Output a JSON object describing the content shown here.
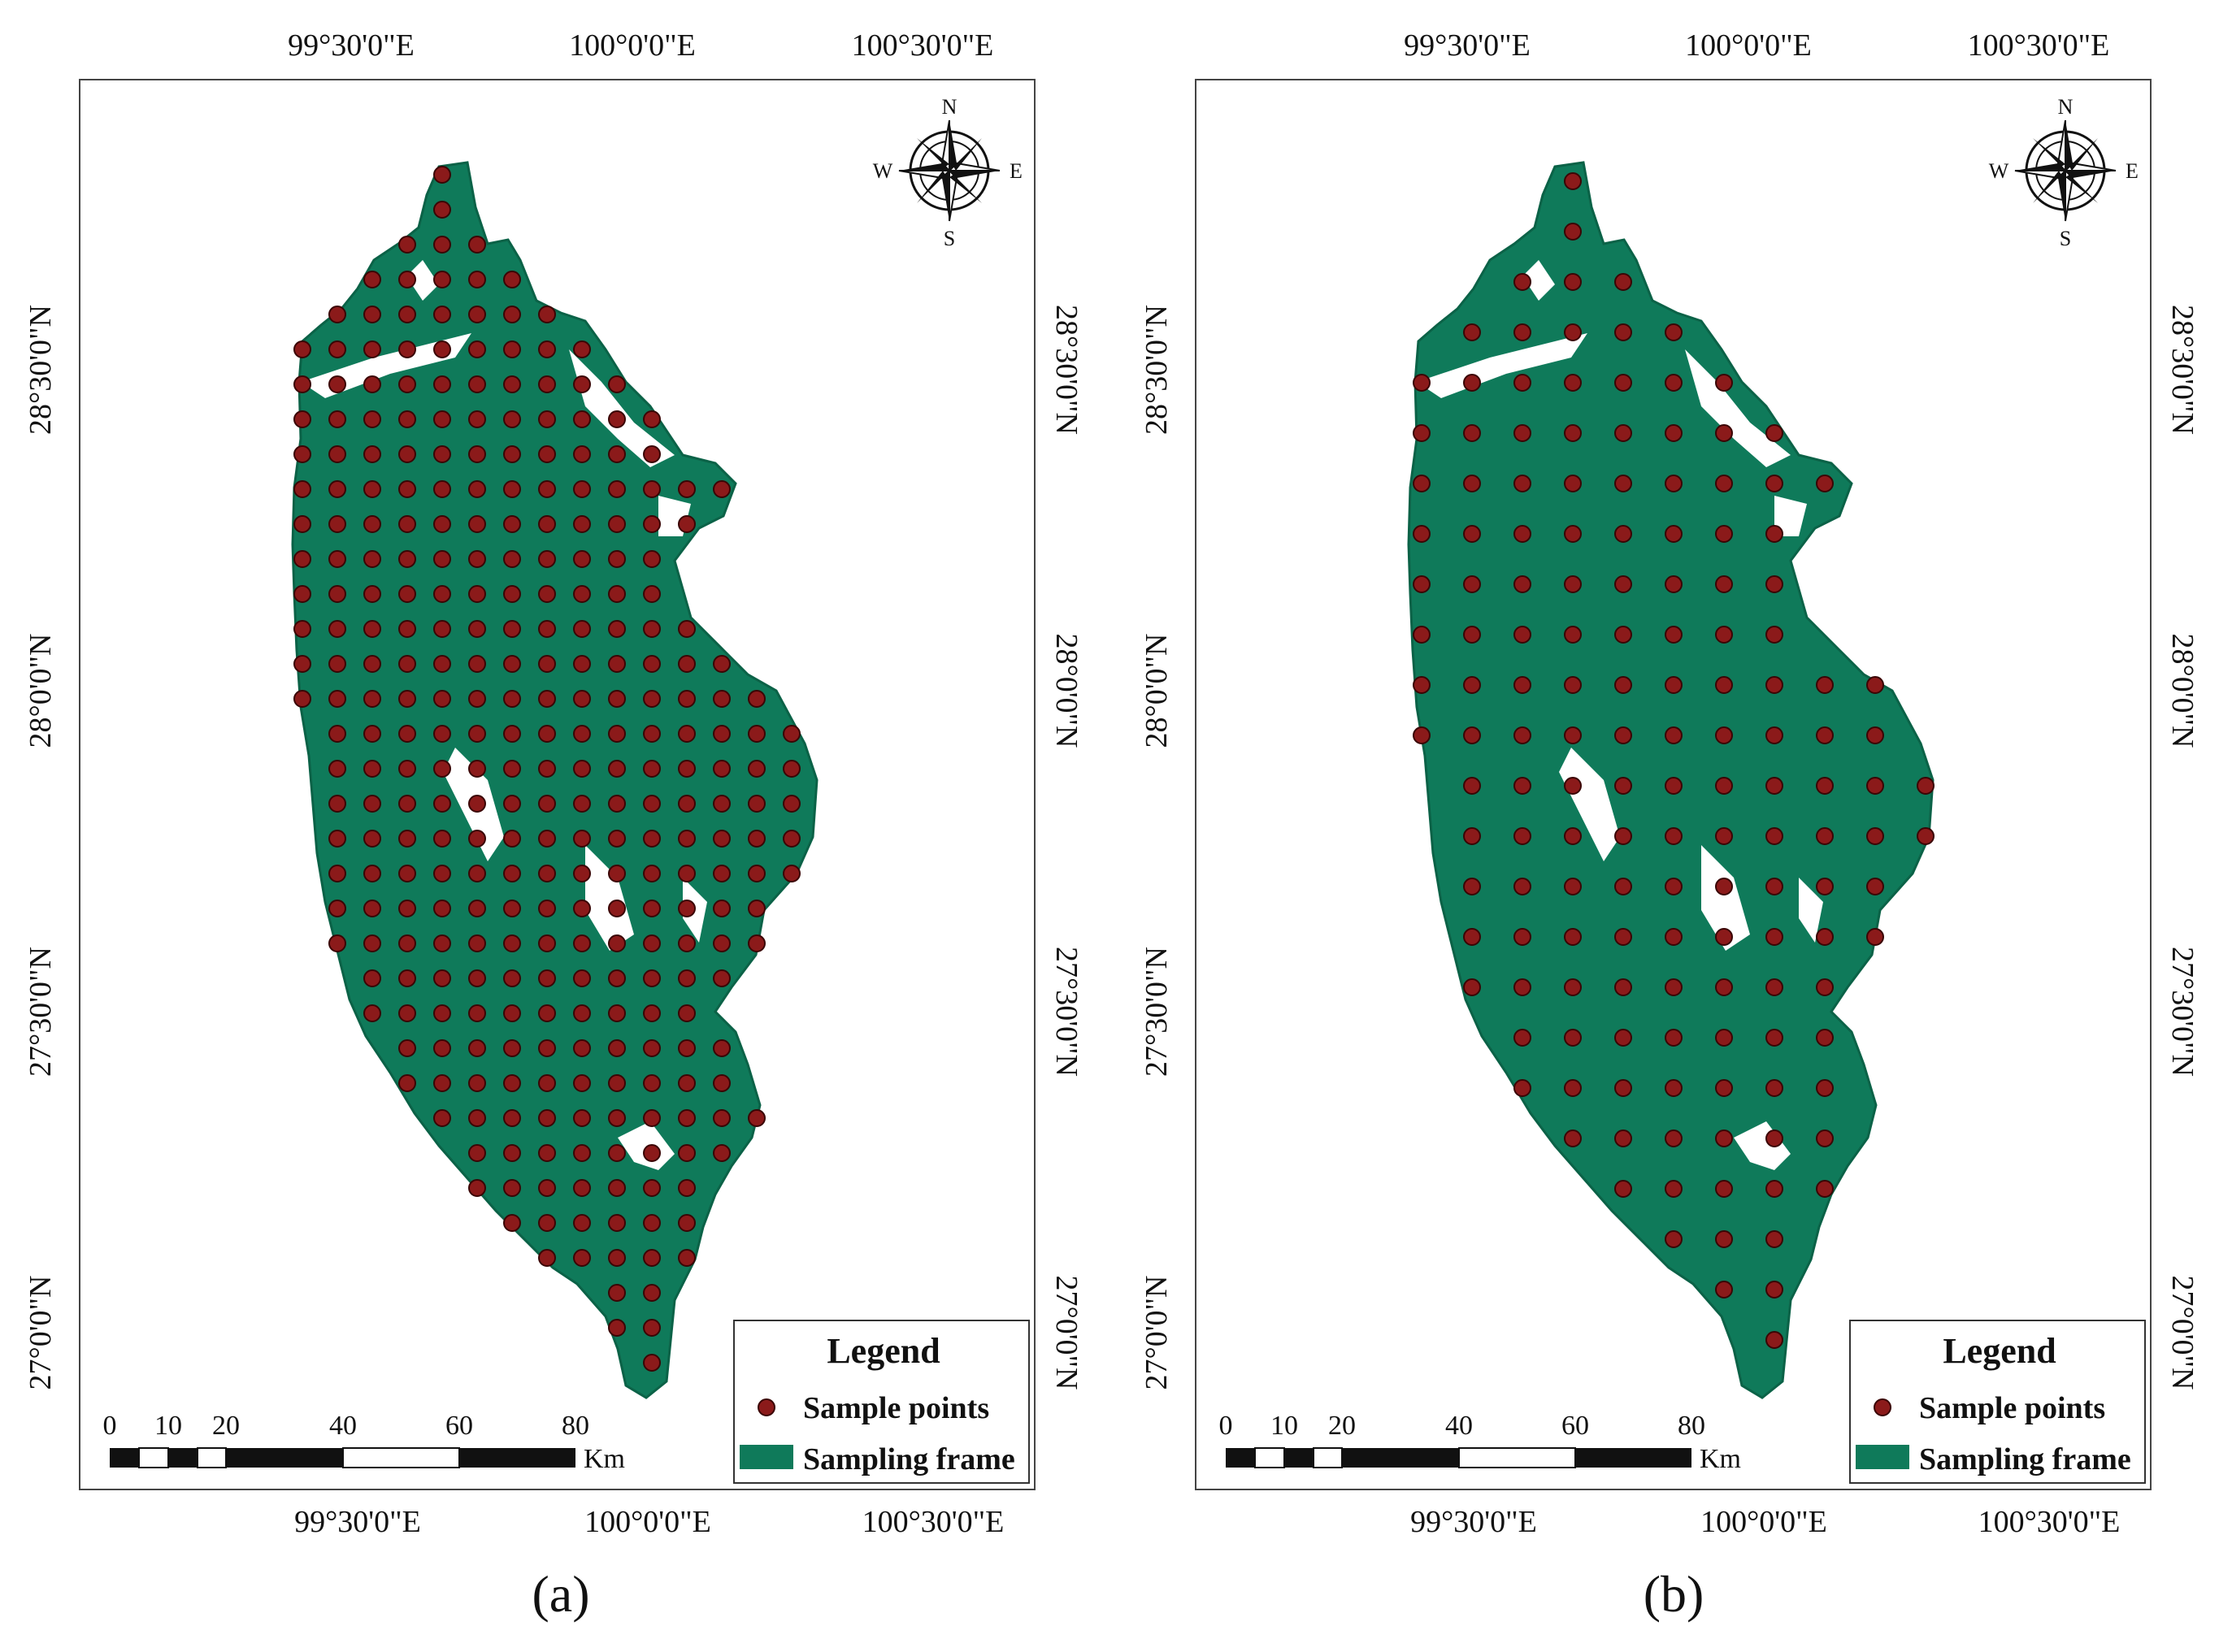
{
  "panels": [
    {
      "id": "a",
      "caption": "(a)",
      "lon_labels": [
        "99°30'0\"E",
        "100°0'0\"E",
        "100°30'0\"E"
      ],
      "lat_labels": [
        "28°30'0\"N",
        "28°0'0\"N",
        "27°30'0\"N",
        "27°0'0\"N"
      ],
      "legend": {
        "title": "Legend",
        "points_label": "Sample points",
        "frame_label": "Sampling frame"
      },
      "scale": {
        "ticks": [
          "0",
          "10",
          "20",
          "40",
          "60",
          "80"
        ],
        "unit": "Km"
      },
      "compass": {
        "n": "N",
        "s": "S",
        "e": "E",
        "w": "W"
      },
      "sample_density": "dense"
    },
    {
      "id": "b",
      "caption": "(b)",
      "lon_labels": [
        "99°30'0\"E",
        "100°0'0\"E",
        "100°30'0\"E"
      ],
      "lat_labels": [
        "28°30'0\"N",
        "28°0'0\"N",
        "27°30'0\"N",
        "27°0'0\"N"
      ],
      "legend": {
        "title": "Legend",
        "points_label": "Sample points",
        "frame_label": "Sampling frame"
      },
      "scale": {
        "ticks": [
          "0",
          "10",
          "20",
          "40",
          "60",
          "80"
        ],
        "unit": "Km"
      },
      "compass": {
        "n": "N",
        "s": "S",
        "e": "E",
        "w": "W"
      },
      "sample_density": "sparse"
    }
  ],
  "colors": {
    "frame": "#0f7a5a",
    "point": "#8b1a1a",
    "point_stroke": "#3a0505"
  }
}
